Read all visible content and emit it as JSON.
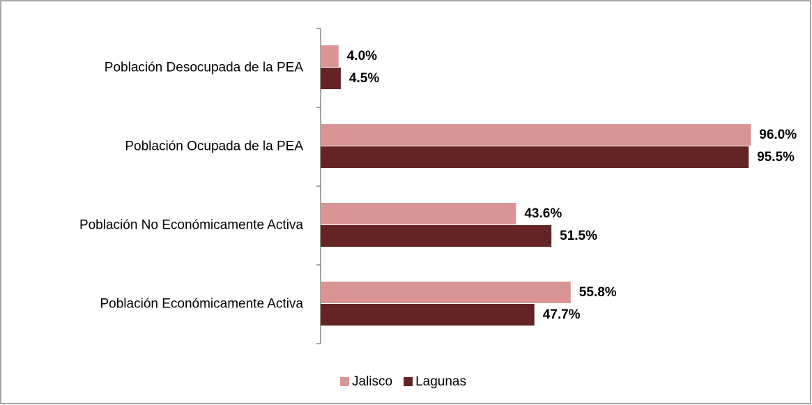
{
  "chart_data": {
    "type": "bar",
    "orientation": "horizontal",
    "categories": [
      "Población Desocupada de la PEA",
      "Población Ocupada de la PEA",
      "Población No Económicamente Activa",
      "Población Económicamente Activa"
    ],
    "series": [
      {
        "name": "Jalisco",
        "color": "#d99594",
        "values": [
          4.0,
          96.0,
          43.6,
          55.8
        ],
        "value_labels": [
          "4.0%",
          "96.0%",
          "43.6%",
          "55.8%"
        ]
      },
      {
        "name": "Lagunas",
        "color": "#632423",
        "values": [
          4.5,
          95.5,
          51.5,
          47.7
        ],
        "value_labels": [
          "4.5%",
          "95.5%",
          "51.5%",
          "47.7%"
        ]
      }
    ],
    "xlim": [
      0,
      100
    ],
    "legend": "bottom"
  }
}
